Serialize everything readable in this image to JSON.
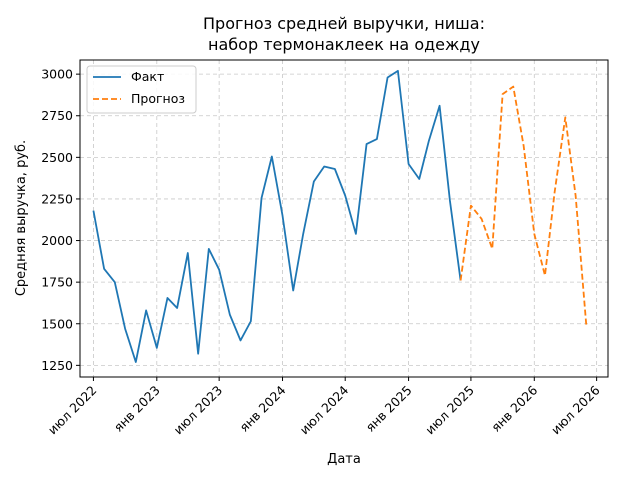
{
  "chart_data": {
    "type": "line",
    "title_lines": [
      "Прогноз средней выручки, ниша:",
      "набор термонаклеек на одежду"
    ],
    "xlabel": "Дата",
    "ylabel": "Средняя выручка, руб.",
    "x_ticks": [
      {
        "date": "2022-07-01",
        "label": "июл 2022"
      },
      {
        "date": "2023-01-01",
        "label": "янв 2023"
      },
      {
        "date": "2023-07-01",
        "label": "июл 2023"
      },
      {
        "date": "2024-01-01",
        "label": "янв 2024"
      },
      {
        "date": "2024-07-01",
        "label": "июл 2024"
      },
      {
        "date": "2025-01-01",
        "label": "янв 2025"
      },
      {
        "date": "2025-07-01",
        "label": "июл 2025"
      },
      {
        "date": "2026-01-01",
        "label": "янв 2026"
      },
      {
        "date": "2026-07-01",
        "label": "июл 2026"
      }
    ],
    "xlim": [
      "2022-05-23",
      "2026-08-03"
    ],
    "y_ticks": [
      1250,
      1500,
      1750,
      2000,
      2250,
      2500,
      2750,
      3000
    ],
    "ylim": [
      1180,
      3085
    ],
    "grid": true,
    "legend_position": "top-left",
    "series": [
      {
        "name": "Факт",
        "color": "#1f77b4",
        "dash": "solid",
        "points": [
          {
            "x": "2022-07-01",
            "y": 2180
          },
          {
            "x": "2022-08-01",
            "y": 1830
          },
          {
            "x": "2022-09-01",
            "y": 1750
          },
          {
            "x": "2022-10-01",
            "y": 1470
          },
          {
            "x": "2022-11-01",
            "y": 1270
          },
          {
            "x": "2022-12-01",
            "y": 1580
          },
          {
            "x": "2023-01-01",
            "y": 1355
          },
          {
            "x": "2023-02-01",
            "y": 1655
          },
          {
            "x": "2023-03-01",
            "y": 1595
          },
          {
            "x": "2023-04-01",
            "y": 1925
          },
          {
            "x": "2023-05-01",
            "y": 1320
          },
          {
            "x": "2023-06-01",
            "y": 1950
          },
          {
            "x": "2023-07-01",
            "y": 1825
          },
          {
            "x": "2023-08-01",
            "y": 1555
          },
          {
            "x": "2023-09-01",
            "y": 1400
          },
          {
            "x": "2023-10-01",
            "y": 1515
          },
          {
            "x": "2023-11-01",
            "y": 2255
          },
          {
            "x": "2023-12-01",
            "y": 2505
          },
          {
            "x": "2024-01-01",
            "y": 2150
          },
          {
            "x": "2024-02-01",
            "y": 1700
          },
          {
            "x": "2024-03-01",
            "y": 2040
          },
          {
            "x": "2024-04-01",
            "y": 2355
          },
          {
            "x": "2024-05-01",
            "y": 2445
          },
          {
            "x": "2024-06-01",
            "y": 2430
          },
          {
            "x": "2024-07-01",
            "y": 2270
          },
          {
            "x": "2024-08-01",
            "y": 2040
          },
          {
            "x": "2024-09-01",
            "y": 2580
          },
          {
            "x": "2024-10-01",
            "y": 2610
          },
          {
            "x": "2024-11-01",
            "y": 2980
          },
          {
            "x": "2024-12-01",
            "y": 3020
          },
          {
            "x": "2025-01-01",
            "y": 2460
          },
          {
            "x": "2025-02-01",
            "y": 2370
          },
          {
            "x": "2025-03-01",
            "y": 2600
          },
          {
            "x": "2025-04-01",
            "y": 2810
          },
          {
            "x": "2025-05-01",
            "y": 2240
          },
          {
            "x": "2025-06-01",
            "y": 1760
          }
        ]
      },
      {
        "name": "Прогноз",
        "color": "#ff7f0e",
        "dash": "dashed",
        "points": [
          {
            "x": "2025-06-01",
            "y": 1760
          },
          {
            "x": "2025-07-01",
            "y": 2210
          },
          {
            "x": "2025-08-01",
            "y": 2130
          },
          {
            "x": "2025-09-01",
            "y": 1950
          },
          {
            "x": "2025-10-01",
            "y": 2880
          },
          {
            "x": "2025-11-01",
            "y": 2925
          },
          {
            "x": "2025-12-01",
            "y": 2570
          },
          {
            "x": "2026-01-01",
            "y": 2040
          },
          {
            "x": "2026-02-01",
            "y": 1790
          },
          {
            "x": "2026-03-01",
            "y": 2290
          },
          {
            "x": "2026-04-01",
            "y": 2740
          },
          {
            "x": "2026-05-01",
            "y": 2270
          },
          {
            "x": "2026-06-01",
            "y": 1490
          }
        ]
      }
    ]
  }
}
